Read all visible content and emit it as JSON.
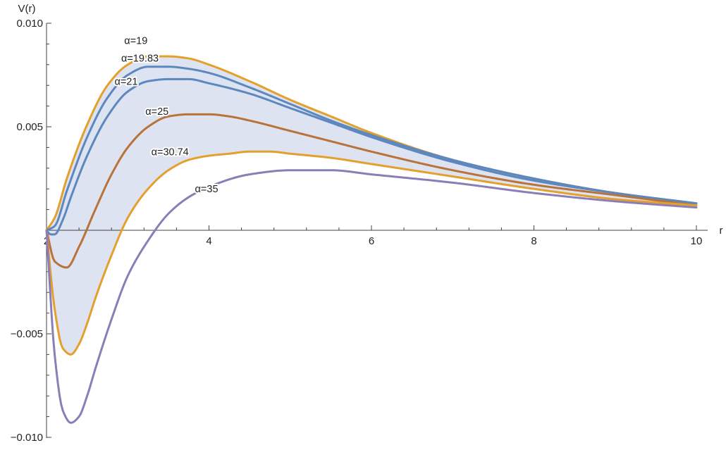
{
  "chart_data": {
    "type": "line",
    "title": "",
    "xlabel": "r",
    "ylabel": "V(r)",
    "xlim": [
      2,
      10
    ],
    "ylim": [
      -0.01,
      0.01
    ],
    "x_ticks": [
      2,
      4,
      6,
      8,
      10
    ],
    "x_tick_labels": [
      "2",
      "4",
      "6",
      "8",
      "10"
    ],
    "y_ticks": [
      -0.01,
      -0.005,
      0.005,
      0.01
    ],
    "y_tick_labels": [
      "−0.010",
      "−0.005",
      "0.005",
      "0.010"
    ],
    "grid": false,
    "legend": "none",
    "shaded_band": {
      "between": [
        "α=19",
        "α=30.74"
      ],
      "color": "#dde3f0"
    },
    "series": [
      {
        "name": "α=19",
        "color": "#e3a02c",
        "x": [
          2.0,
          2.1,
          2.25,
          2.5,
          2.75,
          3.0,
          3.25,
          3.5,
          3.75,
          4.0,
          4.5,
          5.0,
          5.5,
          6.0,
          7.0,
          8.0,
          9.0,
          10.0
        ],
        "y": [
          0.0,
          0.0006,
          0.0025,
          0.0051,
          0.007,
          0.008,
          0.0084,
          0.0084,
          0.0083,
          0.008,
          0.0072,
          0.0063,
          0.0055,
          0.0047,
          0.0034,
          0.0025,
          0.0018,
          0.0013
        ]
      },
      {
        "name": "α=19.83",
        "color": "#5c87bf",
        "x": [
          2.0,
          2.1,
          2.25,
          2.5,
          2.75,
          3.0,
          3.25,
          3.5,
          3.75,
          4.0,
          4.5,
          5.0,
          5.5,
          6.0,
          7.0,
          8.0,
          9.0,
          10.0
        ],
        "y": [
          0.0,
          0.0002,
          0.0019,
          0.0045,
          0.0064,
          0.0075,
          0.0079,
          0.0079,
          0.0078,
          0.0076,
          0.0069,
          0.0061,
          0.0053,
          0.0046,
          0.0034,
          0.0025,
          0.0018,
          0.0013
        ]
      },
      {
        "name": "α=21",
        "color": "#5c87bf",
        "x": [
          2.0,
          2.05,
          2.1,
          2.2,
          2.3,
          2.5,
          2.75,
          3.0,
          3.25,
          3.5,
          3.75,
          4.0,
          4.5,
          5.0,
          5.5,
          6.0,
          7.0,
          8.0,
          9.0,
          10.0
        ],
        "y": [
          0.0,
          -0.0002,
          -0.0002,
          0.0005,
          0.0016,
          0.0036,
          0.0055,
          0.0067,
          0.0072,
          0.0073,
          0.0073,
          0.0071,
          0.0066,
          0.0059,
          0.0052,
          0.0045,
          0.0033,
          0.0024,
          0.0018,
          0.0013
        ]
      },
      {
        "name": "α=25",
        "color": "#b9733a",
        "x": [
          2.0,
          2.1,
          2.25,
          2.4,
          2.6,
          2.8,
          3.0,
          3.25,
          3.5,
          3.75,
          4.0,
          4.25,
          4.5,
          5.0,
          5.5,
          6.0,
          7.0,
          8.0,
          9.0,
          10.0
        ],
        "y": [
          0.0,
          -0.0015,
          -0.0018,
          -0.0008,
          0.001,
          0.0027,
          0.004,
          0.005,
          0.0055,
          0.0056,
          0.0056,
          0.0055,
          0.0053,
          0.0048,
          0.0043,
          0.0038,
          0.0029,
          0.0022,
          0.0017,
          0.0012
        ]
      },
      {
        "name": "α=30.74",
        "color": "#e3a02c",
        "x": [
          2.0,
          2.1,
          2.2,
          2.3,
          2.4,
          2.5,
          2.6,
          2.8,
          3.0,
          3.25,
          3.5,
          3.75,
          4.0,
          4.25,
          4.5,
          4.75,
          5.0,
          5.5,
          6.0,
          7.0,
          8.0,
          9.0,
          10.0
        ],
        "y": [
          0.0,
          -0.0038,
          -0.0057,
          -0.006,
          -0.0055,
          -0.0045,
          -0.0033,
          -0.0012,
          0.0006,
          0.002,
          0.0029,
          0.0034,
          0.0036,
          0.0037,
          0.0038,
          0.0038,
          0.0037,
          0.0035,
          0.0032,
          0.0026,
          0.002,
          0.0015,
          0.0012
        ]
      },
      {
        "name": "α=35",
        "color": "#8b7db8",
        "x": [
          2.0,
          2.1,
          2.2,
          2.3,
          2.4,
          2.5,
          2.6,
          2.8,
          3.0,
          3.25,
          3.5,
          3.75,
          4.0,
          4.5,
          5.0,
          5.5,
          6.0,
          7.0,
          8.0,
          9.0,
          10.0
        ],
        "y": [
          0.0,
          -0.006,
          -0.0087,
          -0.0093,
          -0.009,
          -0.008,
          -0.0067,
          -0.0043,
          -0.0022,
          -0.0005,
          0.0008,
          0.0016,
          0.0021,
          0.0027,
          0.0029,
          0.0029,
          0.0027,
          0.0023,
          0.0018,
          0.0014,
          0.0011
        ]
      }
    ],
    "annotations": [
      {
        "text": "α=19",
        "series": "α=19",
        "x": 3.1,
        "y": 0.009
      },
      {
        "text": "α=19.83",
        "series": "α=19.83",
        "x": 3.15,
        "y": 0.00815
      },
      {
        "text": "α=21",
        "series": "α=21",
        "x": 2.98,
        "y": 0.00703
      },
      {
        "text": "α=25",
        "series": "α=25",
        "x": 3.36,
        "y": 0.00558
      },
      {
        "text": "α=30.74",
        "series": "α=30.74",
        "x": 3.52,
        "y": 0.00363
      },
      {
        "text": "α=35",
        "series": "α=35",
        "x": 3.97,
        "y": 0.00183
      }
    ]
  }
}
